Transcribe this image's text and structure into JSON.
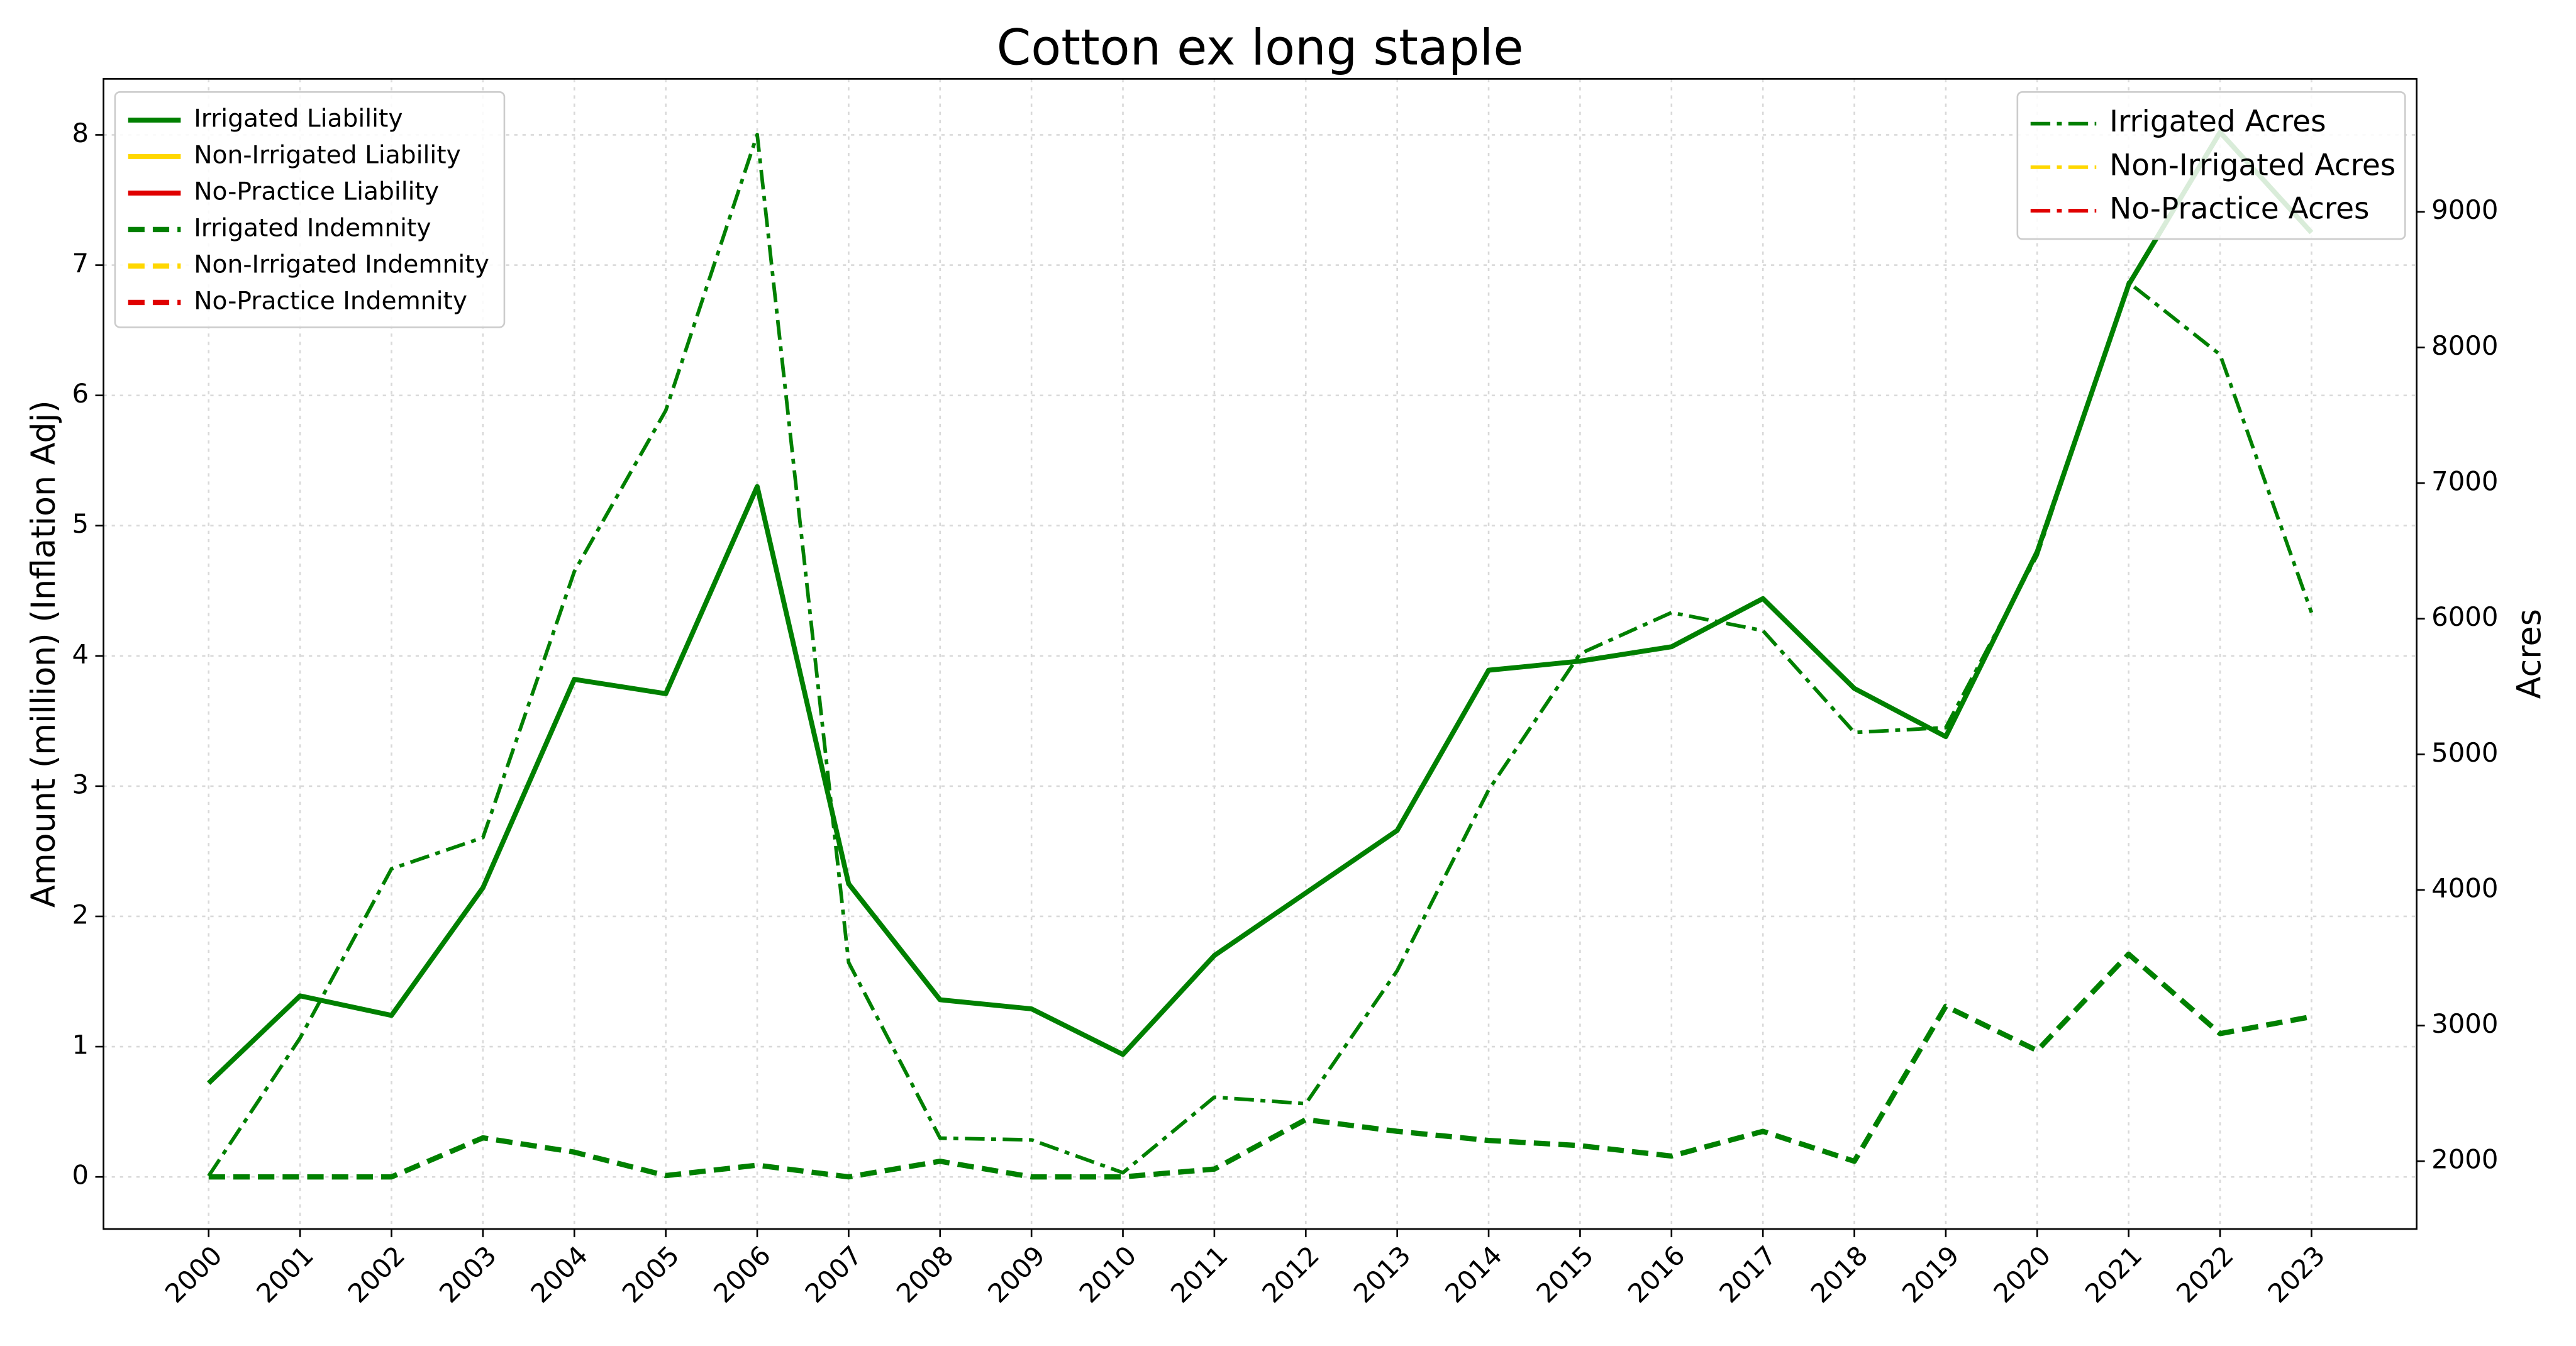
{
  "chart_data": {
    "type": "line",
    "title": "Cotton ex long staple",
    "ylabel": "Amount (million) (Inflation Adj)",
    "y2label": "Acres",
    "categories": [
      "2000",
      "2001",
      "2002",
      "2003",
      "2004",
      "2005",
      "2006",
      "2007",
      "2008",
      "2009",
      "2010",
      "2011",
      "2012",
      "2013",
      "2014",
      "2015",
      "2016",
      "2017",
      "2018",
      "2019",
      "2020",
      "2021",
      "2022",
      "2023"
    ],
    "ylim": [
      -0.4,
      8.43
    ],
    "yticks": [
      0,
      1,
      2,
      3,
      4,
      5,
      6,
      7,
      8
    ],
    "y2lim": [
      1500,
      9980
    ],
    "y2ticks": [
      2000,
      3000,
      4000,
      5000,
      6000,
      7000,
      8000,
      9000
    ],
    "grid": true,
    "legend": "upper left",
    "legend2": "upper right",
    "series": [
      {
        "name": "Irrigated Liability",
        "color": "#008000",
        "style": "solid",
        "axis": "y",
        "values": [
          0.72,
          1.39,
          1.24,
          2.22,
          3.82,
          3.71,
          5.3,
          2.25,
          1.36,
          1.29,
          0.94,
          1.7,
          2.18,
          2.66,
          3.89,
          3.96,
          4.07,
          4.44,
          3.75,
          3.38,
          4.8,
          6.85,
          8.02,
          7.25
        ]
      },
      {
        "name": "Non-Irrigated Liability",
        "color": "#ffd700",
        "style": "solid",
        "axis": "y",
        "values": [
          null,
          null,
          null,
          null,
          null,
          null,
          null,
          null,
          null,
          null,
          null,
          null,
          null,
          null,
          null,
          null,
          null,
          null,
          null,
          null,
          null,
          null,
          null,
          null
        ]
      },
      {
        "name": "No-Practice Liability",
        "color": "#e00000",
        "style": "solid",
        "axis": "y",
        "values": [
          null,
          null,
          null,
          null,
          null,
          null,
          null,
          null,
          null,
          null,
          null,
          null,
          null,
          null,
          null,
          null,
          null,
          null,
          null,
          null,
          null,
          null,
          null,
          null
        ]
      },
      {
        "name": "Irrigated Indemnity",
        "color": "#008000",
        "style": "dashed",
        "axis": "y",
        "values": [
          0,
          0,
          0,
          0.3,
          0.19,
          0.01,
          0.09,
          0,
          0.12,
          0,
          0,
          0.06,
          0.44,
          0.35,
          0.28,
          0.24,
          0.16,
          0.35,
          0.12,
          1.31,
          0.97,
          1.71,
          1.1,
          1.23
        ]
      },
      {
        "name": "Non-Irrigated Indemnity",
        "color": "#ffd700",
        "style": "dashed",
        "axis": "y",
        "values": [
          null,
          null,
          null,
          null,
          null,
          null,
          null,
          null,
          null,
          null,
          null,
          null,
          null,
          null,
          null,
          null,
          null,
          null,
          null,
          null,
          null,
          null,
          null,
          null
        ]
      },
      {
        "name": "No-Practice Indemnity",
        "color": "#e00000",
        "style": "dashed",
        "axis": "y",
        "values": [
          null,
          null,
          null,
          null,
          null,
          null,
          null,
          null,
          null,
          null,
          null,
          null,
          null,
          null,
          null,
          null,
          null,
          null,
          null,
          null,
          null,
          null,
          null,
          null
        ]
      },
      {
        "name": "Irrigated Acres",
        "color": "#008000",
        "style": "dashdot",
        "axis": "y2",
        "values": [
          1891,
          2908,
          4156,
          4386,
          6348,
          7535,
          9569,
          3465,
          2170,
          2157,
          1915,
          2472,
          2424,
          3405,
          4737,
          5742,
          6045,
          5912,
          5161,
          5197,
          6469,
          8479,
          7947,
          6045
        ]
      },
      {
        "name": "Non-Irrigated Acres",
        "color": "#ffd700",
        "style": "dashdot",
        "axis": "y2",
        "values": [
          null,
          null,
          null,
          null,
          null,
          null,
          null,
          null,
          null,
          null,
          null,
          null,
          null,
          null,
          null,
          null,
          null,
          null,
          null,
          null,
          null,
          null,
          null,
          null
        ]
      },
      {
        "name": "No-Practice Acres",
        "color": "#e00000",
        "style": "dashdot",
        "axis": "y2",
        "values": [
          null,
          null,
          null,
          null,
          null,
          null,
          null,
          null,
          null,
          null,
          null,
          null,
          null,
          null,
          null,
          null,
          null,
          null,
          null,
          null,
          null,
          null,
          null,
          null
        ]
      }
    ]
  }
}
